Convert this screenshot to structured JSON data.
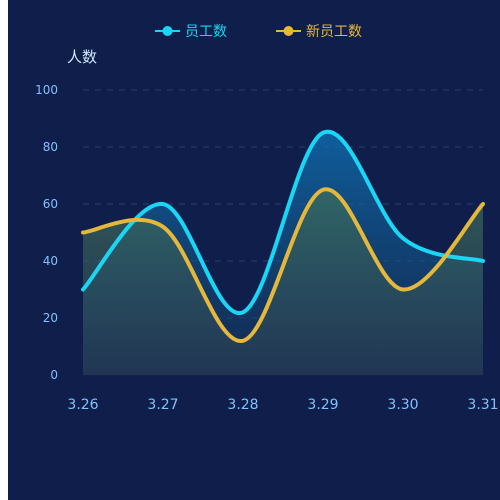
{
  "chart_data": {
    "type": "line",
    "ylabel": "人数",
    "ylim": [
      0,
      100
    ],
    "yticks": [
      0,
      20,
      40,
      60,
      80,
      100
    ],
    "categories": [
      "3.26",
      "3.27",
      "3.28",
      "3.29",
      "3.30",
      "3.31"
    ],
    "grid": true,
    "legend": "top-center",
    "smooth": true,
    "series": [
      {
        "name": "员工数",
        "values": [
          30,
          60,
          22,
          85,
          48,
          40
        ],
        "color": "#1ad6f5",
        "area": true
      },
      {
        "name": "新员工数",
        "values": [
          50,
          52,
          12,
          65,
          30,
          60
        ],
        "color": "#e5b73b",
        "area": true
      }
    ]
  }
}
